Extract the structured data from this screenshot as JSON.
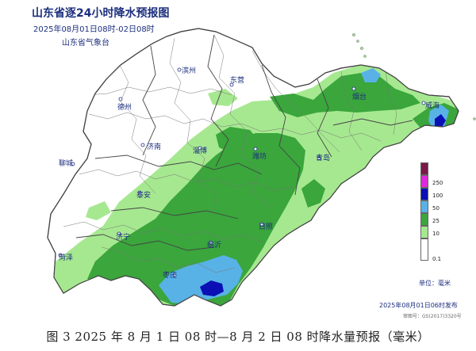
{
  "header": {
    "title": "山东省逐24小时降水预报图",
    "period": "2025年08月01日08时-02日08时",
    "issuer": "山东省气象台"
  },
  "cities": [
    {
      "name": "滨州"
    },
    {
      "name": "东营"
    },
    {
      "name": "德州"
    },
    {
      "name": "烟台"
    },
    {
      "name": "威海"
    },
    {
      "name": "潍坊"
    },
    {
      "name": "淄博"
    },
    {
      "name": "济南"
    },
    {
      "name": "聊城"
    },
    {
      "name": "青岛"
    },
    {
      "name": "泰安"
    },
    {
      "name": "日照"
    },
    {
      "name": "济宁"
    },
    {
      "name": "临沂"
    },
    {
      "name": "菏泽"
    },
    {
      "name": "枣庄"
    }
  ],
  "legend": {
    "items": [
      {
        "label": "250",
        "color": "#7a1a4a"
      },
      {
        "label": "100",
        "color": "#e028d8"
      },
      {
        "label": "50",
        "color": "#0a10b4"
      },
      {
        "label": "25",
        "color": "#58b2e6"
      },
      {
        "label": "10",
        "color": "#3aa63c"
      },
      {
        "label": "0.1",
        "color": "#a6e890"
      }
    ],
    "unit": "单位：毫米"
  },
  "issued": "2025年08月01日06时发布",
  "map_number": "审图号：GS(2017)3320号",
  "caption": "图 3  2025 年 8 月 1 日 08 时—8 月 2 日 08 时降水量预报（毫米）",
  "colors": {
    "light_rain": "#a6e890",
    "moderate_rain": "#3aa63c",
    "heavy_rain": "#58b2e6",
    "rainstorm": "#0a10b4",
    "header_text": "#1c2f7e"
  }
}
